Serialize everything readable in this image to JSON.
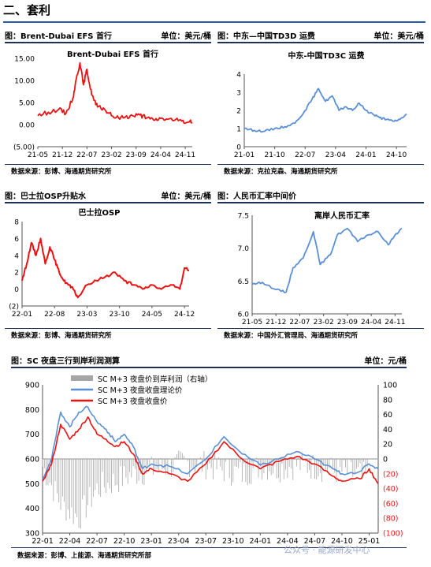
{
  "section": {
    "title": "二、套利"
  },
  "colors": {
    "red": "#ee1111",
    "blue": "#5b8fd6",
    "gray": "#a6a6a6",
    "rule": "#1f2f57"
  },
  "panel1": {
    "header": "图：Brent-Dubai EFS 首行",
    "unit": "单位：美元/桶",
    "source": "数据来源：彭博、海通期货研究所"
  },
  "panel2": {
    "header": "图：中东—中国TD3D 运费",
    "unit": "单位：美元/桶",
    "source": "数据来源：克拉克森、海通期货研究所"
  },
  "panel3": {
    "header": "图：巴士拉OSP升贴水",
    "unit": "单位：美元/桶",
    "source": "数据来源：彭博、海通期货研究所"
  },
  "panel4": {
    "header": "图：人民币汇率中间价",
    "unit": "",
    "source": "数据来源：中国外汇管理局、海通期货研究所"
  },
  "panel5": {
    "header": "图：SC 夜盘三行到岸利润测算",
    "unit": "单位：元/桶",
    "source": "数据来源：彭博、上能源、海通期货研究所部"
  },
  "watermark": "公众号 · 能源研发中心",
  "chart_data": [
    {
      "type": "line",
      "title": "Brent-Dubai EFS 首行",
      "ylim": [
        -5,
        15
      ],
      "y_ticks": [
        "15.00",
        "10.00",
        "5.00",
        "0.00",
        "(5.00)"
      ],
      "x_ticks": [
        "21-05",
        "21-12",
        "22-07",
        "23-02",
        "23-09",
        "24-04",
        "24-11"
      ],
      "series": [
        {
          "name": "Brent-Dubai EFS 首行",
          "color": "#ee1111",
          "x": [
            "21-05",
            "21-08",
            "21-11",
            "22-01",
            "22-03",
            "22-04",
            "22-05",
            "22-06",
            "22-07",
            "22-08",
            "22-09",
            "22-10",
            "22-12",
            "23-02",
            "23-04",
            "23-06",
            "23-08",
            "23-10",
            "23-12",
            "24-02",
            "24-04",
            "24-06",
            "24-08",
            "24-10",
            "24-12",
            "25-01"
          ],
          "values": [
            2.0,
            2.8,
            3.5,
            2.5,
            6.0,
            10.5,
            14.0,
            9.0,
            12.5,
            8.0,
            5.5,
            4.0,
            3.5,
            2.0,
            1.5,
            1.8,
            2.0,
            2.2,
            1.5,
            1.0,
            1.4,
            1.2,
            1.0,
            0.8,
            0.6,
            0.5
          ]
        }
      ]
    },
    {
      "type": "line",
      "title": "中东-中国TD3C 运费",
      "ylim": [
        0,
        4
      ],
      "y_ticks": [
        "4",
        "3",
        "2",
        "1",
        "0"
      ],
      "x_ticks": [
        "21-01",
        "21-10",
        "22-07",
        "23-04",
        "24-01",
        "24-10"
      ],
      "series": [
        {
          "name": "中东-中国TD3C 运费",
          "color": "#5b8fd6",
          "x": [
            "21-01",
            "21-04",
            "21-07",
            "21-10",
            "22-01",
            "22-04",
            "22-07",
            "22-09",
            "22-11",
            "23-01",
            "23-03",
            "23-05",
            "23-07",
            "23-09",
            "23-11",
            "24-01",
            "24-03",
            "24-05",
            "24-07",
            "24-09",
            "24-11",
            "25-01"
          ],
          "values": [
            1.0,
            0.9,
            0.85,
            1.0,
            1.1,
            1.3,
            2.0,
            2.6,
            3.2,
            2.5,
            2.8,
            2.0,
            2.2,
            2.0,
            2.4,
            2.0,
            1.8,
            1.6,
            1.5,
            1.4,
            1.5,
            1.8
          ]
        }
      ]
    },
    {
      "type": "line",
      "title": "巴士拉OSP",
      "ylim": [
        -2,
        8
      ],
      "y_ticks": [
        "8",
        "6",
        "4",
        "2",
        "0",
        "(2)"
      ],
      "x_ticks": [
        "22-01",
        "22-08",
        "23-03",
        "23-10",
        "24-05",
        "24-12"
      ],
      "series": [
        {
          "name": "巴士拉OSP",
          "color": "#ee1111",
          "x": [
            "22-01",
            "22-02",
            "22-03",
            "22-04",
            "22-05",
            "22-06",
            "22-07",
            "22-08",
            "22-09",
            "22-10",
            "22-11",
            "22-12",
            "23-01",
            "23-03",
            "23-05",
            "23-07",
            "23-09",
            "23-11",
            "24-01",
            "24-03",
            "24-05",
            "24-07",
            "24-09",
            "24-11",
            "24-12",
            "25-01"
          ],
          "values": [
            1.0,
            3.0,
            5.5,
            4.0,
            6.0,
            3.0,
            5.0,
            3.5,
            2.0,
            1.0,
            0.5,
            0.0,
            -1.0,
            0.5,
            1.0,
            1.5,
            2.0,
            1.0,
            0.5,
            0.0,
            0.5,
            0.0,
            0.5,
            0.0,
            2.5,
            2.2
          ]
        }
      ]
    },
    {
      "type": "line",
      "title": "离岸人民币汇率",
      "ylim": [
        6.0,
        7.5
      ],
      "y_ticks": [
        "7.5",
        "7.0",
        "6.5",
        "6.0"
      ],
      "x_ticks": [
        "21-05",
        "21-12",
        "22-07",
        "23-02",
        "23-09",
        "24-04",
        "24-11"
      ],
      "series": [
        {
          "name": "离岸人民币汇率",
          "color": "#5b8fd6",
          "x": [
            "21-05",
            "21-08",
            "21-12",
            "22-03",
            "22-05",
            "22-08",
            "22-11",
            "23-01",
            "23-04",
            "23-06",
            "23-09",
            "23-12",
            "24-03",
            "24-06",
            "24-09",
            "24-11",
            "25-01"
          ],
          "values": [
            6.45,
            6.48,
            6.37,
            6.33,
            6.7,
            6.85,
            7.25,
            6.75,
            6.9,
            7.2,
            7.3,
            7.1,
            7.2,
            7.25,
            7.05,
            7.2,
            7.3
          ]
        }
      ]
    },
    {
      "type": "line",
      "title": "",
      "ylim": [
        300,
        900
      ],
      "y2lim": [
        -100,
        100
      ],
      "y_ticks": [
        "900",
        "800",
        "700",
        "600",
        "500",
        "400",
        "300"
      ],
      "y2_ticks": [
        "100",
        "80",
        "60",
        "40",
        "20",
        "0",
        "(20)",
        "(40)",
        "(60)",
        "(80)",
        "(100)"
      ],
      "x_ticks": [
        "22-01",
        "22-04",
        "22-07",
        "22-10",
        "23-01",
        "23-04",
        "23-07",
        "23-10",
        "24-01",
        "24-04",
        "24-07",
        "24-10",
        "25-01"
      ],
      "series": [
        {
          "name": "SC M+3 夜盘价到岸利润（右轴）",
          "color": "#a6a6a6",
          "type": "bar",
          "axis": "right",
          "x": [
            "22-01",
            "22-03",
            "22-05",
            "22-07",
            "22-09",
            "22-11",
            "23-01",
            "23-03",
            "23-05",
            "23-07",
            "23-09",
            "23-11",
            "24-01",
            "24-03",
            "24-05",
            "24-07",
            "24-09",
            "24-11",
            "25-01"
          ],
          "values": [
            -10,
            -60,
            -80,
            -40,
            -30,
            -20,
            -15,
            -10,
            -5,
            -8,
            -15,
            -20,
            -10,
            -12,
            -8,
            -10,
            -15,
            -20,
            -25
          ]
        },
        {
          "name": "SC M+3 夜盘收盘理论价",
          "color": "#5b8fd6",
          "x": [
            "22-01",
            "22-02",
            "22-03",
            "22-04",
            "22-05",
            "22-06",
            "22-07",
            "22-08",
            "22-09",
            "22-10",
            "22-11",
            "22-12",
            "23-01",
            "23-03",
            "23-05",
            "23-07",
            "23-09",
            "23-11",
            "24-01",
            "24-03",
            "24-05",
            "24-07",
            "24-09",
            "24-10",
            "24-12",
            "25-01",
            "25-02"
          ],
          "values": [
            520,
            600,
            790,
            730,
            790,
            810,
            750,
            720,
            670,
            700,
            650,
            560,
            580,
            570,
            540,
            600,
            690,
            620,
            575,
            600,
            630,
            600,
            560,
            540,
            550,
            580,
            560
          ]
        },
        {
          "name": "SC M+3 夜盘收盘价",
          "color": "#ee1111",
          "x": [
            "22-01",
            "22-02",
            "22-03",
            "22-04",
            "22-05",
            "22-06",
            "22-07",
            "22-08",
            "22-09",
            "22-10",
            "22-11",
            "22-12",
            "23-01",
            "23-03",
            "23-05",
            "23-07",
            "23-09",
            "23-11",
            "24-01",
            "24-03",
            "24-05",
            "24-07",
            "24-09",
            "24-10",
            "24-12",
            "25-01",
            "25-02"
          ],
          "values": [
            510,
            580,
            740,
            680,
            720,
            770,
            700,
            680,
            650,
            670,
            620,
            540,
            560,
            540,
            510,
            580,
            670,
            600,
            560,
            590,
            610,
            580,
            530,
            510,
            520,
            560,
            500
          ]
        }
      ]
    }
  ]
}
